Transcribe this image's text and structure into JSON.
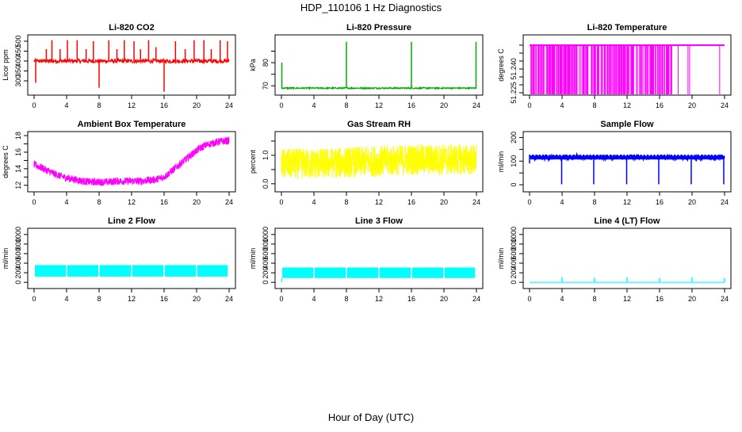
{
  "figure": {
    "title": "HDP_110106  1 Hz Diagnostics",
    "xlabel": "Hour of Day (UTC)"
  },
  "chart_data": [
    {
      "type": "line",
      "title": "Li-820 CO2",
      "ylabel": "Licor ppm",
      "color": "#ff0000",
      "xlim": [
        0,
        24
      ],
      "ylim": [
        240,
        520
      ],
      "xticks": [
        0,
        4,
        8,
        12,
        16,
        20,
        24
      ],
      "yticks": [
        300,
        350,
        400,
        450,
        500
      ],
      "baseline": 400,
      "noise": 10,
      "spikes": [
        {
          "x": 0.2,
          "y": 290
        },
        {
          "x": 1.5,
          "y": 460
        },
        {
          "x": 2.2,
          "y": 505
        },
        {
          "x": 3.2,
          "y": 460
        },
        {
          "x": 4.1,
          "y": 505
        },
        {
          "x": 5.3,
          "y": 505
        },
        {
          "x": 6.4,
          "y": 460
        },
        {
          "x": 7.3,
          "y": 500
        },
        {
          "x": 8.0,
          "y": 265
        },
        {
          "x": 9.2,
          "y": 505
        },
        {
          "x": 10.2,
          "y": 460
        },
        {
          "x": 11.1,
          "y": 505
        },
        {
          "x": 12.3,
          "y": 500
        },
        {
          "x": 13.1,
          "y": 460
        },
        {
          "x": 14.1,
          "y": 505
        },
        {
          "x": 15.0,
          "y": 470
        },
        {
          "x": 16.0,
          "y": 245
        },
        {
          "x": 17.4,
          "y": 500
        },
        {
          "x": 18.6,
          "y": 460
        },
        {
          "x": 19.7,
          "y": 505
        },
        {
          "x": 20.9,
          "y": 505
        },
        {
          "x": 21.8,
          "y": 460
        },
        {
          "x": 22.9,
          "y": 505
        },
        {
          "x": 23.8,
          "y": 500
        }
      ]
    },
    {
      "type": "line",
      "title": "Li-820 Pressure",
      "ylabel": "kPa",
      "color": "#00aa00",
      "xlim": [
        0,
        24
      ],
      "ylim": [
        67,
        91
      ],
      "xticks": [
        0,
        4,
        8,
        12,
        16,
        20,
        24
      ],
      "yticks": [
        70,
        75,
        80,
        85
      ],
      "yticklabels": [
        "70",
        "",
        "80",
        ""
      ],
      "baseline": 69,
      "noise": 0.3,
      "spikes": [
        {
          "x": 0.05,
          "y": 80
        },
        {
          "x": 8.0,
          "y": 89
        },
        {
          "x": 16.0,
          "y": 89
        },
        {
          "x": 23.95,
          "y": 89
        }
      ]
    },
    {
      "type": "bar",
      "title": "Li-820 Temperature",
      "ylabel": "degrees C",
      "color": "#ff00ff",
      "xlim": [
        0,
        24
      ],
      "ylim": [
        51.225,
        51.26
      ],
      "xticks": [
        0,
        4,
        8,
        12,
        16,
        20,
        24
      ],
      "yticks": [
        51.225,
        51.23,
        51.235,
        51.24,
        51.245,
        51.25,
        51.255
      ],
      "yticklabels": [
        "51.225",
        "",
        "",
        "51.240",
        "",
        "",
        ""
      ],
      "high": 51.255,
      "low": 51.225,
      "dense_until": 17.5,
      "extra_drops": [
        18.3,
        19.5,
        19.7,
        23.4
      ]
    },
    {
      "type": "area",
      "title": "Ambient Box Temperature",
      "ylabel": "degrees C",
      "color": "#ff00ff",
      "xlim": [
        0,
        24
      ],
      "ylim": [
        11.5,
        18.2
      ],
      "xticks": [
        0,
        4,
        8,
        12,
        16,
        20,
        24
      ],
      "yticks": [
        12,
        13,
        14,
        15,
        16,
        17,
        18
      ],
      "yticklabels": [
        "12",
        "",
        "14",
        "",
        "16",
        "",
        "18"
      ],
      "x": [
        0,
        1,
        2,
        3,
        4,
        5,
        6,
        7,
        8,
        9,
        10,
        11,
        12,
        13,
        14,
        15,
        16,
        17,
        18,
        19,
        20,
        21,
        22,
        23,
        24
      ],
      "y": [
        14.5,
        14.1,
        13.6,
        13.2,
        12.9,
        12.7,
        12.5,
        12.4,
        12.4,
        12.4,
        12.5,
        12.5,
        12.5,
        12.5,
        12.6,
        12.7,
        13.0,
        13.8,
        14.6,
        15.4,
        16.2,
        16.8,
        17.1,
        17.3,
        17.4
      ],
      "band": 0.45
    },
    {
      "type": "area",
      "title": "Gas Stream RH",
      "ylabel": "percent",
      "color": "#ffff00",
      "xlim": [
        0,
        24
      ],
      "ylim": [
        -0.2,
        1.75
      ],
      "xticks": [
        0,
        4,
        8,
        12,
        16,
        20,
        24
      ],
      "yticks": [
        0.0,
        0.5,
        1.0,
        1.5
      ],
      "yticklabels": [
        "0.0",
        "",
        "1.0",
        ""
      ],
      "x": [
        0,
        4,
        8,
        12,
        16,
        20,
        24
      ],
      "y": [
        0.7,
        0.7,
        0.75,
        0.8,
        0.85,
        0.85,
        0.85
      ],
      "band": 0.55
    },
    {
      "type": "line",
      "title": "Sample Flow",
      "ylabel": "ml/min",
      "color": "#0000ff",
      "xlim": [
        0,
        24
      ],
      "ylim": [
        -20,
        215
      ],
      "xticks": [
        0,
        4,
        8,
        12,
        16,
        20,
        24
      ],
      "yticks": [
        0,
        50,
        100,
        150,
        200
      ],
      "yticklabels": [
        "0",
        "",
        "100",
        "",
        "200"
      ],
      "baseline": 115,
      "noise": 7,
      "drops": [
        {
          "x": 0.0,
          "y": 90
        },
        {
          "x": 3.95,
          "y": 2
        },
        {
          "x": 7.9,
          "y": 2
        },
        {
          "x": 11.95,
          "y": 2
        },
        {
          "x": 15.9,
          "y": 2
        },
        {
          "x": 19.9,
          "y": 2
        },
        {
          "x": 23.9,
          "y": 2
        }
      ]
    },
    {
      "type": "area",
      "title": "Line 2 Flow",
      "ylabel": "ml/min",
      "color": "#00ffff",
      "xlim": [
        0,
        24
      ],
      "ylim": [
        -80,
        1080
      ],
      "xticks": [
        0,
        4,
        8,
        12,
        16,
        20,
        24
      ],
      "yticks": [
        0,
        200,
        400,
        600,
        800,
        1000
      ],
      "yticklabels": [
        "0",
        "200",
        "400",
        "600",
        "800",
        "1000"
      ],
      "low": 120,
      "high": 360,
      "gaps": [
        4.0,
        8.0,
        12.0,
        16.0,
        20.0
      ]
    },
    {
      "type": "area",
      "title": "Line 3 Flow",
      "ylabel": "ml/min",
      "color": "#00ffff",
      "xlim": [
        0,
        24
      ],
      "ylim": [
        -80,
        1080
      ],
      "xticks": [
        0,
        4,
        8,
        12,
        16,
        20,
        24
      ],
      "yticks": [
        0,
        200,
        400,
        600,
        800,
        1000
      ],
      "yticklabels": [
        "0",
        "200",
        "400",
        "600",
        "800",
        "1000"
      ],
      "low": 90,
      "high": 310,
      "gaps": [
        4.0,
        8.0,
        12.0,
        16.0,
        20.0
      ]
    },
    {
      "type": "line",
      "title": "Line 4 (LT) Flow",
      "ylabel": "ml/min",
      "color": "#00ffff",
      "xlim": [
        0,
        24
      ],
      "ylim": [
        -80,
        1080
      ],
      "xticks": [
        0,
        4,
        8,
        12,
        16,
        20,
        24
      ],
      "yticks": [
        0,
        200,
        400,
        600,
        800,
        1000
      ],
      "yticklabels": [
        "0",
        "200",
        "400",
        "600",
        "800",
        "1000"
      ],
      "baseline": 0,
      "noise": 0,
      "spikes": [
        {
          "x": 4.0,
          "y": 110
        },
        {
          "x": 8.0,
          "y": 95
        },
        {
          "x": 12.0,
          "y": 105
        },
        {
          "x": 16.0,
          "y": 90
        },
        {
          "x": 20.0,
          "y": 110
        },
        {
          "x": 24.0,
          "y": 95
        }
      ]
    }
  ]
}
